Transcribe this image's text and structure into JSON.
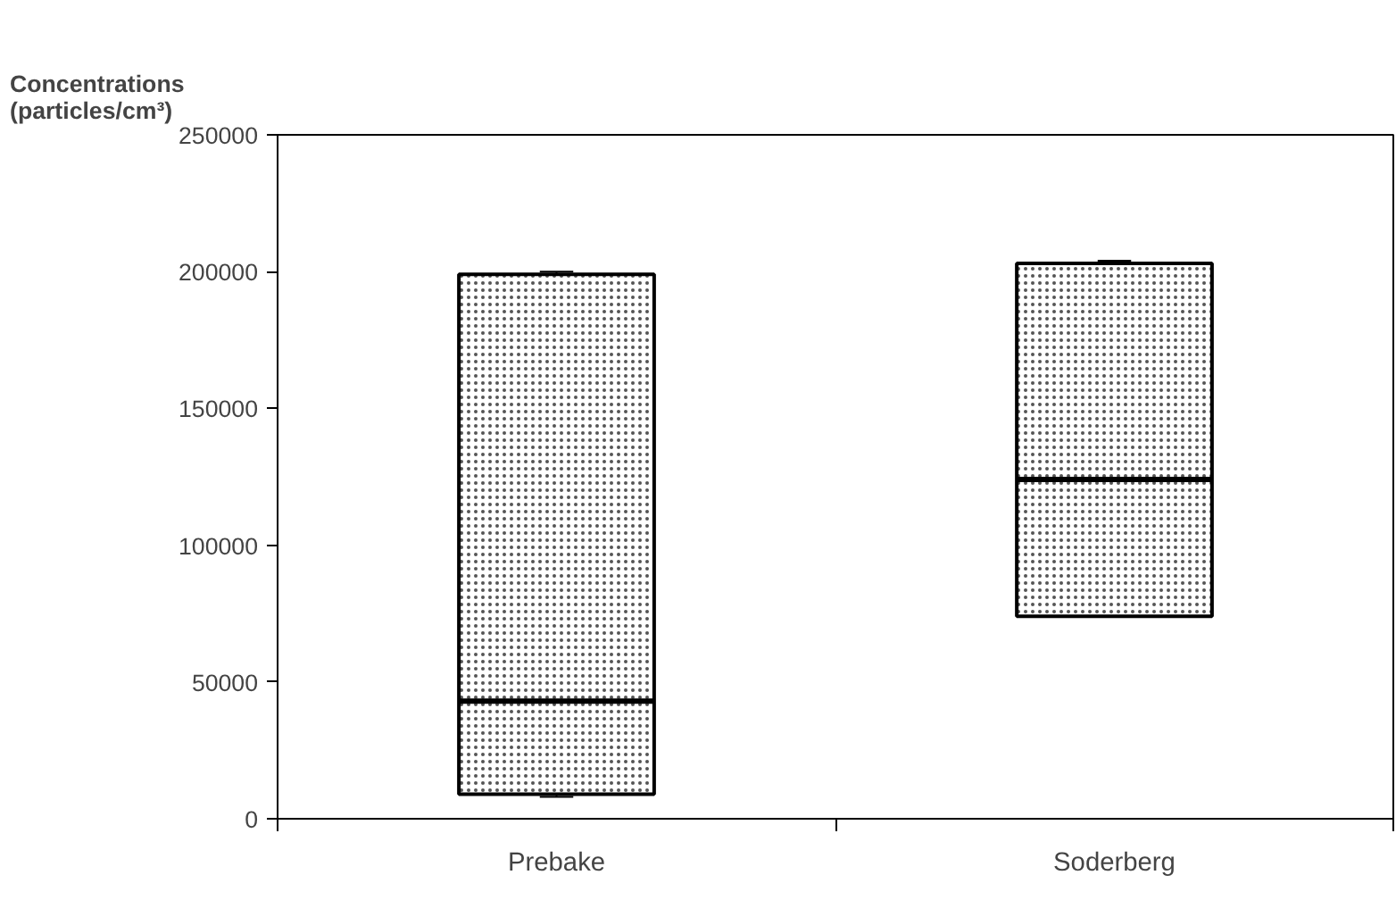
{
  "chart_data": {
    "type": "box",
    "ylabel": "Concentrations\n(particles/cm³)",
    "categories": [
      "Prebake",
      "Soderberg"
    ],
    "boxes": [
      {
        "low": 8000,
        "q1": 9000,
        "median": 43000,
        "q3": 199000,
        "high": 200000
      },
      {
        "low": 74000,
        "q1": 74000,
        "median": 124000,
        "q3": 203000,
        "high": 204000
      }
    ],
    "color": "#ffffff",
    "ylim": [
      0,
      250000
    ],
    "yticks": [
      0,
      50000,
      100000,
      150000,
      200000,
      250000
    ],
    "grid": false
  }
}
